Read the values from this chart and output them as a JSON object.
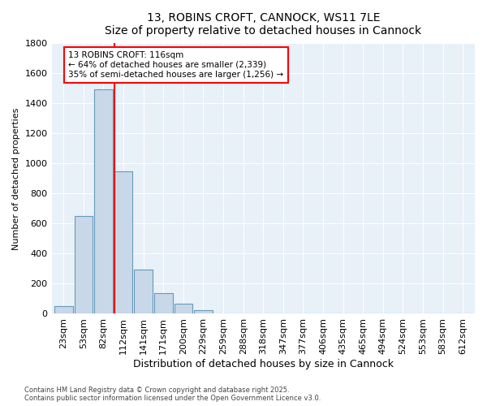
{
  "title": "13, ROBINS CROFT, CANNOCK, WS11 7LE",
  "subtitle": "Size of property relative to detached houses in Cannock",
  "xlabel": "Distribution of detached houses by size in Cannock",
  "ylabel": "Number of detached properties",
  "bin_labels": [
    "23sqm",
    "53sqm",
    "82sqm",
    "112sqm",
    "141sqm",
    "171sqm",
    "200sqm",
    "229sqm",
    "259sqm",
    "288sqm",
    "318sqm",
    "347sqm",
    "377sqm",
    "406sqm",
    "435sqm",
    "465sqm",
    "494sqm",
    "524sqm",
    "553sqm",
    "583sqm",
    "612sqm"
  ],
  "bar_values": [
    50,
    650,
    1495,
    950,
    295,
    135,
    65,
    22,
    5,
    0,
    0,
    0,
    0,
    0,
    0,
    0,
    0,
    0,
    0,
    0,
    0
  ],
  "bar_color": "#c8d8e8",
  "bar_edge_color": "#6699bb",
  "property_line_x": 2.55,
  "property_line_color": "red",
  "annotation_text": "13 ROBINS CROFT: 116sqm\n← 64% of detached houses are smaller (2,339)\n35% of semi-detached houses are larger (1,256) →",
  "annotation_box_color": "white",
  "annotation_box_edge_color": "red",
  "ylim": [
    0,
    1800
  ],
  "yticks": [
    0,
    200,
    400,
    600,
    800,
    1000,
    1200,
    1400,
    1600,
    1800
  ],
  "bg_color": "#e8f0f8",
  "footer_line1": "Contains HM Land Registry data © Crown copyright and database right 2025.",
  "footer_line2": "Contains public sector information licensed under the Open Government Licence v3.0."
}
